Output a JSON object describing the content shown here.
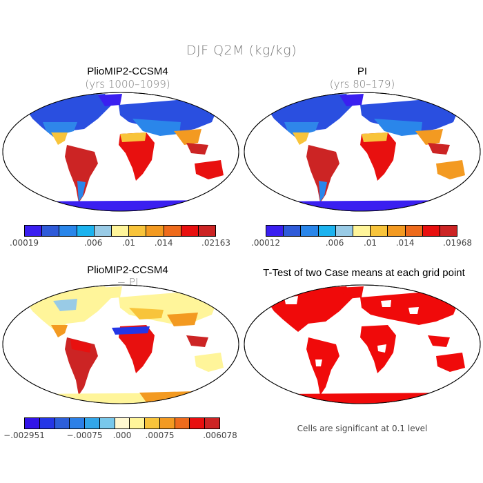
{
  "figure": {
    "title": "DJF Q2M (kg/kg)",
    "panels": [
      {
        "title": "PlioMIP2-CCSM4",
        "subtitle": "(yrs 1000–1099)",
        "colorbar": {
          "colors": [
            "#3a1ff0",
            "#2f5bd9",
            "#2a86ea",
            "#1cb3ef",
            "#99cbe6",
            "#fff59a",
            "#f8c43b",
            "#f39a21",
            "#ee6b1c",
            "#e8100f",
            "#cc2424"
          ],
          "labels": [
            ".00019",
            ".006",
            ".01",
            ".014",
            ".02163"
          ]
        }
      },
      {
        "title": "PI",
        "subtitle": "(yrs 80–179)",
        "colorbar": {
          "colors": [
            "#3a1ff0",
            "#2f5bd9",
            "#2a86ea",
            "#1cb3ef",
            "#99cbe6",
            "#fff59a",
            "#f8c43b",
            "#f39a21",
            "#ee6b1c",
            "#e8100f",
            "#cc2424"
          ],
          "labels": [
            ".00012",
            ".006",
            ".01",
            ".014",
            ".01968"
          ]
        }
      },
      {
        "title": "PlioMIP2-CCSM4",
        "subtitle": "− PI",
        "colorbar": {
          "colors": [
            "#3214e8",
            "#2436e6",
            "#2c5ed9",
            "#2c80e7",
            "#32a6e9",
            "#78c8eb",
            "#fff8d0",
            "#fff59a",
            "#f8c43b",
            "#f39a21",
            "#ee6b1c",
            "#e8100f",
            "#cc2424"
          ],
          "labels": [
            "−.002951",
            "−.00075",
            ".000",
            ".00075",
            ".006078"
          ]
        }
      },
      {
        "title": "T-Test of two Case means at each grid point",
        "note": "Cells are significant at 0.1 level"
      }
    ]
  }
}
